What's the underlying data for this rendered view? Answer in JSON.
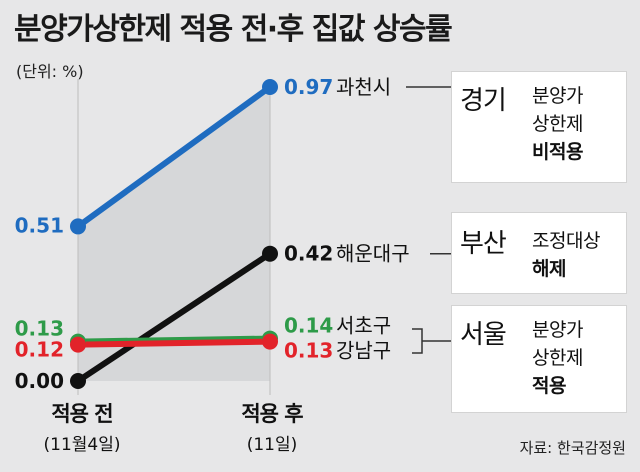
{
  "title": "분양가상한제 적용 전·후 집값 상승률",
  "unit": "(단위: %)",
  "source": "자료: 한국감정원",
  "x_labels": [
    {
      "main": "적용 전",
      "sub": "(11월4일)"
    },
    {
      "main": "적용 후",
      "sub": "(11일)"
    }
  ],
  "cards": [
    {
      "region": "경기",
      "lines": [
        "분양가",
        "상한제"
      ],
      "emph": "비적용"
    },
    {
      "region": "부산",
      "lines": [
        "조정대상"
      ],
      "emph": "해제"
    },
    {
      "region": "서울",
      "lines": [
        "분양가",
        "상한제"
      ],
      "emph": "적용"
    }
  ],
  "chart_data": {
    "type": "line",
    "title": "분양가상한제 적용 전·후 집값 상승률",
    "ylabel": "(단위: %)",
    "categories": [
      "적용 전 (11월4일)",
      "적용 후 (11일)"
    ],
    "series": [
      {
        "name": "과천시",
        "values": [
          0.51,
          0.97
        ],
        "color": "#1f6cc0",
        "before_label": "0.51",
        "after_label": "0.97"
      },
      {
        "name": "해운대구",
        "values": [
          0.0,
          0.42
        ],
        "color": "#111111",
        "before_label": "0.00",
        "after_label": "0.42"
      },
      {
        "name": "서초구",
        "values": [
          0.13,
          0.14
        ],
        "color": "#2e9b49",
        "before_label": "0.13",
        "after_label": "0.14"
      },
      {
        "name": "강남구",
        "values": [
          0.12,
          0.13
        ],
        "color": "#e2232a",
        "before_label": "0.12",
        "after_label": "0.13"
      }
    ],
    "ylim": [
      0,
      0.97
    ],
    "legend": "right"
  }
}
